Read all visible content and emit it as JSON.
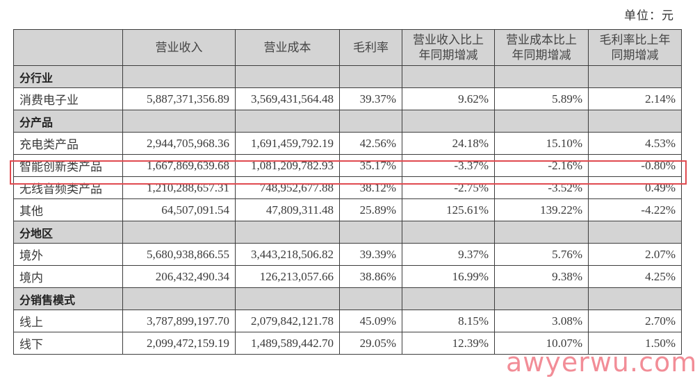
{
  "unit_label": "单位：元",
  "headers": [
    "",
    "营业收入",
    "营业成本",
    "毛利率",
    "营业收入比上年同期增减",
    "营业成本比上年同期增减",
    "毛利率比上年同期增减"
  ],
  "header_lines": [
    [
      ""
    ],
    [
      "营业收入"
    ],
    [
      "营业成本"
    ],
    [
      "毛利率"
    ],
    [
      "营业收入比上",
      "年同期增减"
    ],
    [
      "营业成本比上",
      "年同期增减"
    ],
    [
      "毛利率比上年",
      "同期增减"
    ]
  ],
  "sections": [
    {
      "title": "分行业",
      "rows": [
        {
          "label": "消费电子业",
          "revenue": "5,887,371,356.89",
          "cost": "3,569,431,564.48",
          "margin": "39.37%",
          "rev_yoy": "9.62%",
          "cost_yoy": "5.89%",
          "margin_yoy": "2.14%"
        }
      ]
    },
    {
      "title": "分产品",
      "rows": [
        {
          "label": "充电类产品",
          "revenue": "2,944,705,968.36",
          "cost": "1,691,459,792.19",
          "margin": "42.56%",
          "rev_yoy": "24.18%",
          "cost_yoy": "15.10%",
          "margin_yoy": "4.53%"
        },
        {
          "label": "智能创新类产品",
          "revenue": "1,667,869,639.68",
          "cost": "1,081,209,782.93",
          "margin": "35.17%",
          "rev_yoy": "-3.37%",
          "cost_yoy": "-2.16%",
          "margin_yoy": "-0.80%",
          "highlighted": true
        },
        {
          "label": "无线音频类产品",
          "revenue": "1,210,288,657.31",
          "cost": "748,952,677.88",
          "margin": "38.12%",
          "rev_yoy": "-2.75%",
          "cost_yoy": "-3.52%",
          "margin_yoy": "0.49%"
        },
        {
          "label": "其他",
          "revenue": "64,507,091.54",
          "cost": "47,809,311.48",
          "margin": "25.89%",
          "rev_yoy": "125.61%",
          "cost_yoy": "139.22%",
          "margin_yoy": "-4.22%"
        }
      ]
    },
    {
      "title": "分地区",
      "rows": [
        {
          "label": "境外",
          "revenue": "5,680,938,866.55",
          "cost": "3,443,218,506.82",
          "margin": "39.39%",
          "rev_yoy": "9.37%",
          "cost_yoy": "5.76%",
          "margin_yoy": "2.07%"
        },
        {
          "label": "境内",
          "revenue": "206,432,490.34",
          "cost": "126,213,057.66",
          "margin": "38.86%",
          "rev_yoy": "16.99%",
          "cost_yoy": "9.38%",
          "margin_yoy": "4.25%"
        }
      ]
    },
    {
      "title": "分销售模式",
      "rows": [
        {
          "label": "线上",
          "revenue": "3,787,899,197.70",
          "cost": "2,079,842,121.78",
          "margin": "45.09%",
          "rev_yoy": "8.15%",
          "cost_yoy": "3.08%",
          "margin_yoy": "2.70%"
        },
        {
          "label": "线下",
          "revenue": "2,099,472,159.19",
          "cost": "1,489,589,442.70",
          "margin": "29.05%",
          "rev_yoy": "12.39%",
          "cost_yoy": "10.07%",
          "margin_yoy": "1.50%"
        }
      ]
    }
  ],
  "watermark": "awyerwu.com",
  "colors": {
    "header_bg": "#d4d4d4",
    "highlight_border": "#e04a4f",
    "watermark": "#f07a86"
  }
}
